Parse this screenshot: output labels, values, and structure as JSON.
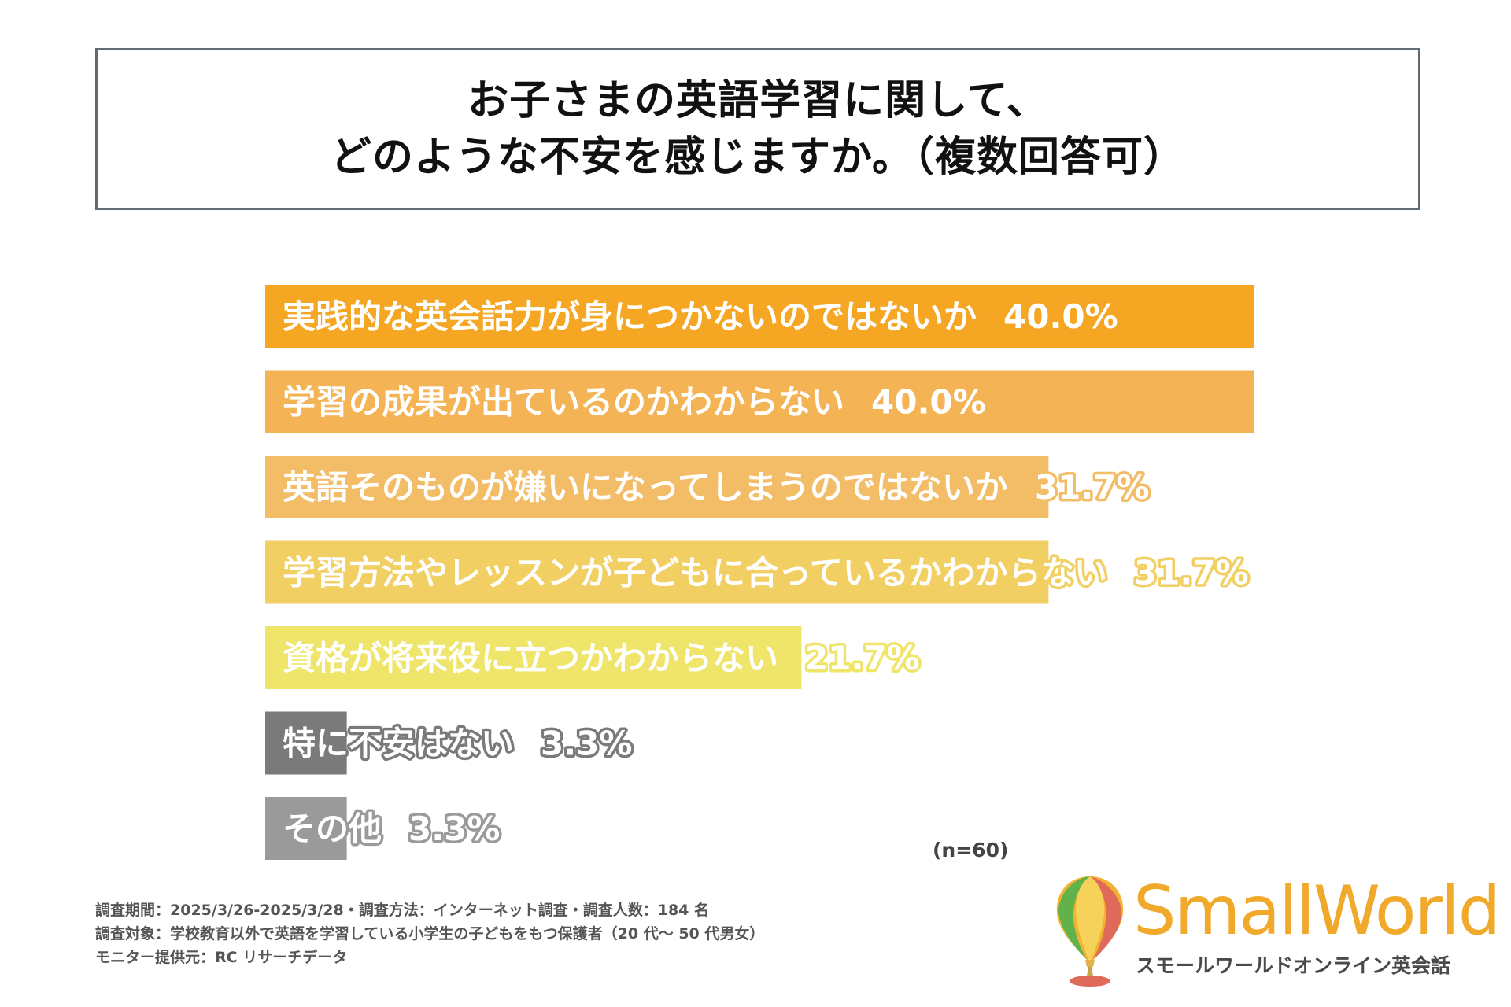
{
  "title": {
    "line1": "お子さまの英語学習に関して、",
    "line2": "どのような不安を感じますか。（複数回答可）"
  },
  "chart_data": {
    "type": "bar",
    "orientation": "horizontal",
    "categories": [
      "実践的な英会話力が身につかないのではないか",
      "学習の成果が出ているのかわからない",
      "英語そのものが嫌いになってしまうのではないか",
      "学習方法やレッスンが子どもに合っているかわからない",
      "資格が将来役に立つかわからない",
      "特に不安はない",
      "その他"
    ],
    "values": [
      40.0,
      40.0,
      31.7,
      31.7,
      21.7,
      3.3,
      3.3
    ],
    "value_labels": [
      "40.0%",
      "40.0%",
      "31.7%",
      "31.7%",
      "21.7%",
      "3.3%",
      "3.3%"
    ],
    "colors": [
      "#f5a623",
      "#f4b455",
      "#f3bc66",
      "#f2cf62",
      "#efe56a",
      "#7a7a7a",
      "#9a9a9a"
    ],
    "xlim": [
      0,
      40
    ]
  },
  "sample_note": "(n=60)",
  "footer": {
    "line1": "調査期間：2025/3/26-2025/3/28・調査方法：インターネット調査・調査人数：184 名",
    "line2": "調査対象：学校教育以外で英語を学習している小学生の子どもをもつ保護者（20 代～ 50 代男女）",
    "line3": "モニター提供元：RC リサーチデータ"
  },
  "logo": {
    "wordmark": "SmallWorld",
    "subtitle": "スモールワールドオンライン英会話"
  }
}
